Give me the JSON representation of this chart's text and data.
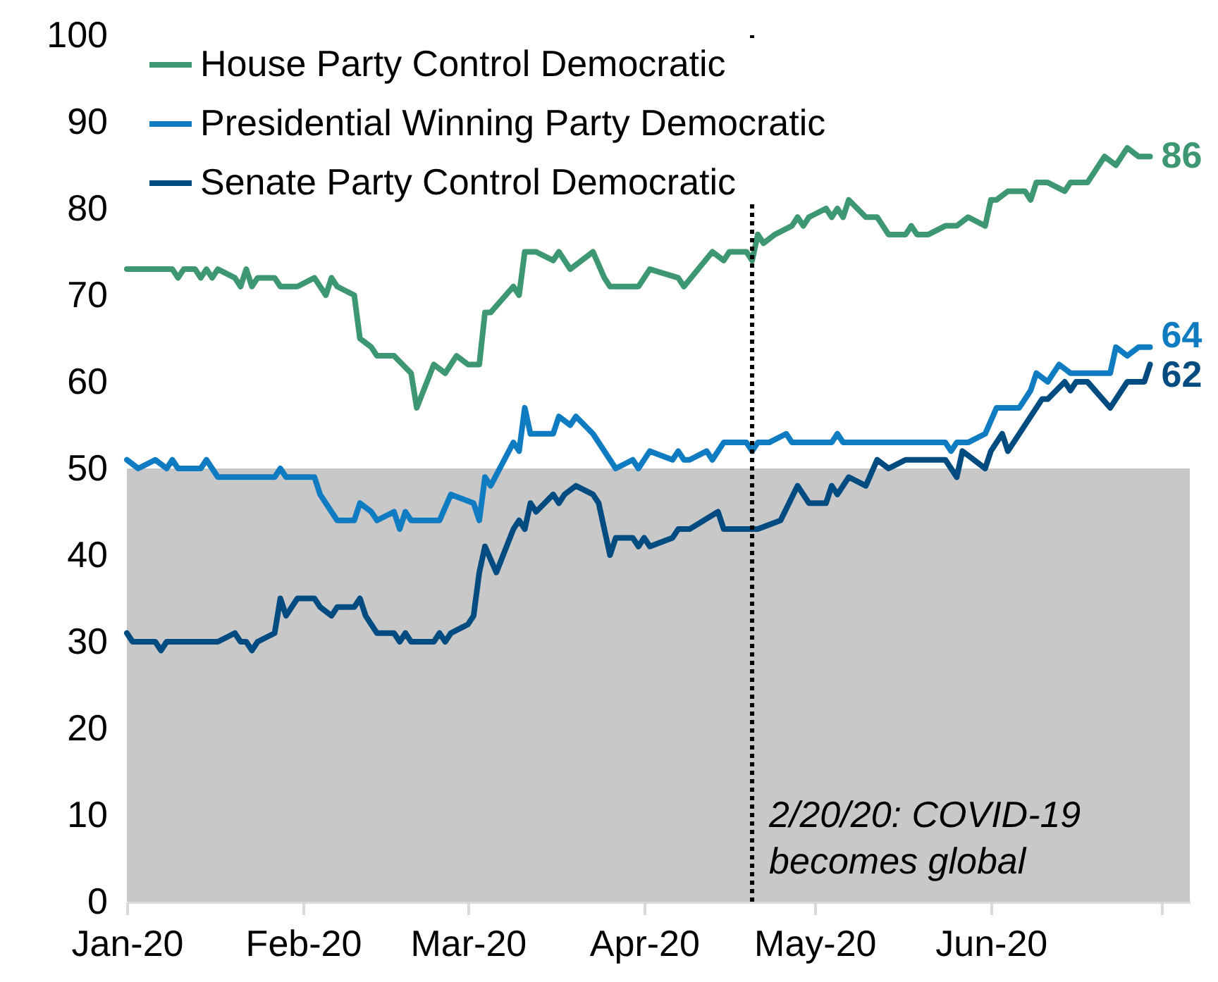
{
  "chart_data": {
    "type": "line",
    "xlim": [
      "2020-01-01",
      "2020-07-06"
    ],
    "ylim": [
      0,
      100
    ],
    "xticks": [
      {
        "value": "2020-01-01",
        "label": "Jan-20"
      },
      {
        "value": "2020-02-01",
        "label": "Feb-20"
      },
      {
        "value": "2020-03-01",
        "label": "Mar-20"
      },
      {
        "value": "2020-04-01",
        "label": "Apr-20"
      },
      {
        "value": "2020-05-01",
        "label": "May-20"
      },
      {
        "value": "2020-06-01",
        "label": "Jun-20"
      },
      {
        "value": "2020-07-01",
        "label": null
      }
    ],
    "yticks": [
      0,
      10,
      20,
      30,
      40,
      50,
      60,
      70,
      80,
      90,
      100
    ],
    "legend": "top left",
    "marker": "none",
    "line_style": "solid",
    "series": [
      {
        "name": "House Party Control Democratic",
        "color": "#3d9772",
        "x": [
          "2020-01-01",
          "2020-01-09",
          "2020-01-10",
          "2020-01-11",
          "2020-01-13",
          "2020-01-14",
          "2020-01-15",
          "2020-01-16",
          "2020-01-17",
          "2020-01-20",
          "2020-01-21",
          "2020-01-22",
          "2020-01-23",
          "2020-01-24",
          "2020-01-27",
          "2020-01-28",
          "2020-01-31",
          "2020-02-03",
          "2020-02-05",
          "2020-02-06",
          "2020-02-07",
          "2020-02-10",
          "2020-02-11",
          "2020-02-13",
          "2020-02-14",
          "2020-02-17",
          "2020-02-20",
          "2020-02-21",
          "2020-02-24",
          "2020-02-26",
          "2020-02-28",
          "2020-03-01",
          "2020-03-03",
          "2020-03-04",
          "2020-03-05",
          "2020-03-09",
          "2020-03-10",
          "2020-03-11",
          "2020-03-13",
          "2020-03-16",
          "2020-03-17",
          "2020-03-19",
          "2020-03-23",
          "2020-03-25",
          "2020-03-26",
          "2020-03-31",
          "2020-04-02",
          "2020-04-07",
          "2020-04-08",
          "2020-04-13",
          "2020-04-15",
          "2020-04-16",
          "2020-04-19",
          "2020-04-20",
          "2020-04-21",
          "2020-04-22",
          "2020-04-24",
          "2020-04-27",
          "2020-04-28",
          "2020-04-29",
          "2020-04-30",
          "2020-05-03",
          "2020-05-04",
          "2020-05-05",
          "2020-05-06",
          "2020-05-07",
          "2020-05-10",
          "2020-05-12",
          "2020-05-14",
          "2020-05-17",
          "2020-05-18",
          "2020-05-19",
          "2020-05-21",
          "2020-05-24",
          "2020-05-26",
          "2020-05-28",
          "2020-05-31",
          "2020-06-01",
          "2020-06-02",
          "2020-06-04",
          "2020-06-07",
          "2020-06-08",
          "2020-06-09",
          "2020-06-11",
          "2020-06-14",
          "2020-06-15",
          "2020-06-18",
          "2020-06-21",
          "2020-06-23",
          "2020-06-25",
          "2020-06-27",
          "2020-06-29"
        ],
        "values": [
          73,
          73,
          72,
          73,
          73,
          72,
          73,
          72,
          73,
          72,
          71,
          73,
          71,
          72,
          72,
          71,
          71,
          72,
          70,
          72,
          71,
          70,
          65,
          64,
          63,
          63,
          61,
          57,
          62,
          61,
          63,
          62,
          62,
          68,
          68,
          71,
          70,
          75,
          75,
          74,
          75,
          73,
          75,
          72,
          71,
          71,
          73,
          72,
          71,
          75,
          74,
          75,
          75,
          74,
          77,
          76,
          77,
          78,
          79,
          78,
          79,
          80,
          79,
          80,
          79,
          81,
          79,
          79,
          77,
          77,
          78,
          77,
          77,
          78,
          78,
          79,
          78,
          81,
          81,
          82,
          82,
          81,
          83,
          83,
          82,
          83,
          83,
          86,
          85,
          87,
          86,
          86
        ]
      },
      {
        "name": "Presidential Winning Party Democratic",
        "color": "#0f7cc1",
        "x": [
          "2020-01-01",
          "2020-01-03",
          "2020-01-06",
          "2020-01-08",
          "2020-01-09",
          "2020-01-10",
          "2020-01-14",
          "2020-01-15",
          "2020-01-17",
          "2020-01-27",
          "2020-01-28",
          "2020-01-29",
          "2020-02-03",
          "2020-02-04",
          "2020-02-05",
          "2020-02-07",
          "2020-02-10",
          "2020-02-11",
          "2020-02-13",
          "2020-02-14",
          "2020-02-17",
          "2020-02-18",
          "2020-02-19",
          "2020-02-20",
          "2020-02-25",
          "2020-02-27",
          "2020-03-02",
          "2020-03-03",
          "2020-03-04",
          "2020-03-05",
          "2020-03-09",
          "2020-03-10",
          "2020-03-11",
          "2020-03-12",
          "2020-03-16",
          "2020-03-17",
          "2020-03-19",
          "2020-03-20",
          "2020-03-23",
          "2020-03-27",
          "2020-03-30",
          "2020-03-31",
          "2020-04-02",
          "2020-04-06",
          "2020-04-07",
          "2020-04-08",
          "2020-04-09",
          "2020-04-12",
          "2020-04-13",
          "2020-04-15",
          "2020-04-19",
          "2020-04-20",
          "2020-04-21",
          "2020-04-23",
          "2020-04-26",
          "2020-04-27",
          "2020-05-04",
          "2020-05-05",
          "2020-05-06",
          "2020-05-24",
          "2020-05-25",
          "2020-05-26",
          "2020-05-28",
          "2020-05-31",
          "2020-06-02",
          "2020-06-06",
          "2020-06-08",
          "2020-06-09",
          "2020-06-11",
          "2020-06-13",
          "2020-06-15",
          "2020-06-22",
          "2020-06-23",
          "2020-06-25",
          "2020-06-27",
          "2020-06-29"
        ],
        "values": [
          51,
          50,
          51,
          50,
          51,
          50,
          50,
          51,
          49,
          49,
          50,
          49,
          49,
          47,
          46,
          44,
          44,
          46,
          45,
          44,
          45,
          43,
          45,
          44,
          44,
          47,
          46,
          44,
          49,
          48,
          53,
          52,
          57,
          54,
          54,
          56,
          55,
          56,
          54,
          50,
          51,
          50,
          52,
          51,
          52,
          51,
          51,
          52,
          51,
          53,
          53,
          52,
          53,
          53,
          54,
          53,
          53,
          54,
          53,
          53,
          52,
          53,
          53,
          54,
          57,
          57,
          59,
          61,
          60,
          62,
          61,
          61,
          64,
          63,
          64,
          64
        ]
      },
      {
        "name": "Senate Party Control Democratic",
        "color": "#004b80",
        "x": [
          "2020-01-01",
          "2020-01-02",
          "2020-01-06",
          "2020-01-07",
          "2020-01-08",
          "2020-01-17",
          "2020-01-20",
          "2020-01-21",
          "2020-01-22",
          "2020-01-23",
          "2020-01-24",
          "2020-01-27",
          "2020-01-28",
          "2020-01-29",
          "2020-01-31",
          "2020-02-03",
          "2020-02-04",
          "2020-02-06",
          "2020-02-07",
          "2020-02-10",
          "2020-02-11",
          "2020-02-12",
          "2020-02-14",
          "2020-02-17",
          "2020-02-18",
          "2020-02-19",
          "2020-02-20",
          "2020-02-24",
          "2020-02-25",
          "2020-02-26",
          "2020-02-27",
          "2020-03-01",
          "2020-03-02",
          "2020-03-03",
          "2020-03-04",
          "2020-03-06",
          "2020-03-09",
          "2020-03-10",
          "2020-03-11",
          "2020-03-12",
          "2020-03-13",
          "2020-03-16",
          "2020-03-17",
          "2020-03-18",
          "2020-03-20",
          "2020-03-23",
          "2020-03-24",
          "2020-03-26",
          "2020-03-27",
          "2020-03-30",
          "2020-03-31",
          "2020-04-01",
          "2020-04-02",
          "2020-04-06",
          "2020-04-07",
          "2020-04-09",
          "2020-04-14",
          "2020-04-15",
          "2020-04-17",
          "2020-04-20",
          "2020-04-21",
          "2020-04-25",
          "2020-04-28",
          "2020-04-30",
          "2020-05-03",
          "2020-05-04",
          "2020-05-05",
          "2020-05-07",
          "2020-05-10",
          "2020-05-12",
          "2020-05-14",
          "2020-05-17",
          "2020-05-24",
          "2020-05-26",
          "2020-05-27",
          "2020-05-31",
          "2020-06-01",
          "2020-06-03",
          "2020-06-04",
          "2020-06-10",
          "2020-06-11",
          "2020-06-14",
          "2020-06-15",
          "2020-06-16",
          "2020-06-18",
          "2020-06-22",
          "2020-06-25",
          "2020-06-28",
          "2020-06-29"
        ],
        "values": [
          31,
          30,
          30,
          29,
          30,
          30,
          31,
          30,
          30,
          29,
          30,
          31,
          35,
          33,
          35,
          35,
          34,
          33,
          34,
          34,
          35,
          33,
          31,
          31,
          30,
          31,
          30,
          30,
          31,
          30,
          31,
          32,
          33,
          38,
          41,
          38,
          43,
          44,
          43,
          46,
          45,
          47,
          46,
          47,
          48,
          47,
          46,
          40,
          42,
          42,
          41,
          42,
          41,
          42,
          43,
          43,
          45,
          43,
          43,
          43,
          43,
          44,
          48,
          46,
          46,
          48,
          47,
          49,
          48,
          51,
          50,
          51,
          51,
          49,
          52,
          50,
          52,
          54,
          52,
          58,
          58,
          60,
          59,
          60,
          60,
          57,
          60,
          60,
          62
        ]
      }
    ],
    "bands": [
      {
        "axis": "y",
        "from": 0,
        "to": 50,
        "color": "#c8c8c8"
      }
    ],
    "ref_lines": [
      {
        "axis": "x",
        "value": "2020-04-20",
        "label": "2/20/20: COVID-19\nbecomes global",
        "line_style": "dotted",
        "color": "#000000"
      }
    ],
    "annotations": [
      {
        "text": "86",
        "x": "2020-06-29",
        "y": 86
      },
      {
        "text": "64",
        "x": "2020-06-29",
        "y": 64
      },
      {
        "text": "62",
        "x": "2020-06-29",
        "y": 62
      }
    ]
  }
}
